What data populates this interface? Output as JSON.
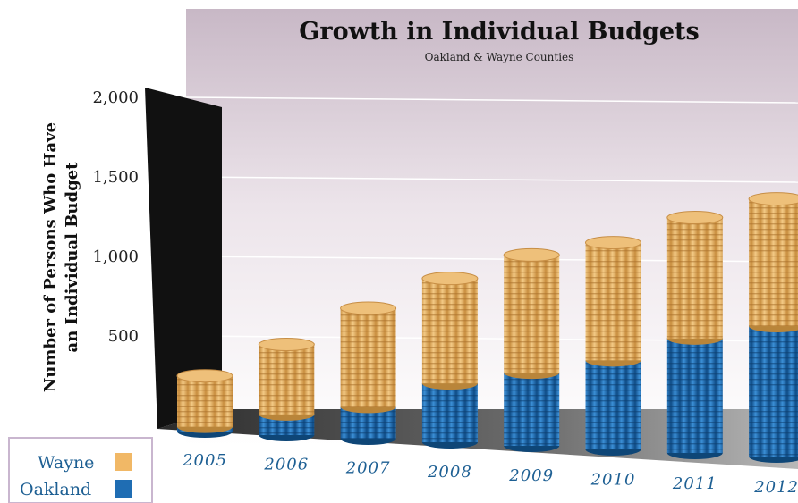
{
  "chart_data": {
    "type": "bar",
    "stacked": true,
    "title": "Growth in Individual Budgets",
    "subtitle": "Oakland & Wayne Counties",
    "ylabel_lines": [
      "Number of Persons Who Have",
      "an Individual Budget"
    ],
    "xlabel": "",
    "ylim": [
      0,
      2000
    ],
    "yticks": [
      500,
      1000,
      1500,
      2000
    ],
    "ytick_labels": [
      "500",
      "1,000",
      "1,500",
      "2,000"
    ],
    "grid": true,
    "legend_placement": "bottom-left",
    "categories": [
      "2005",
      "2006",
      "2007",
      "2008",
      "2009",
      "2010",
      "2011",
      "2012"
    ],
    "series": [
      {
        "name": "Oakland",
        "color": "#1f6db3",
        "values": [
          30,
          130,
          200,
          370,
          460,
          560,
          720,
          820
        ]
      },
      {
        "name": "Wayne",
        "color": "#e9b86e",
        "values": [
          320,
          440,
          620,
          660,
          740,
          740,
          760,
          800
        ]
      }
    ]
  }
}
